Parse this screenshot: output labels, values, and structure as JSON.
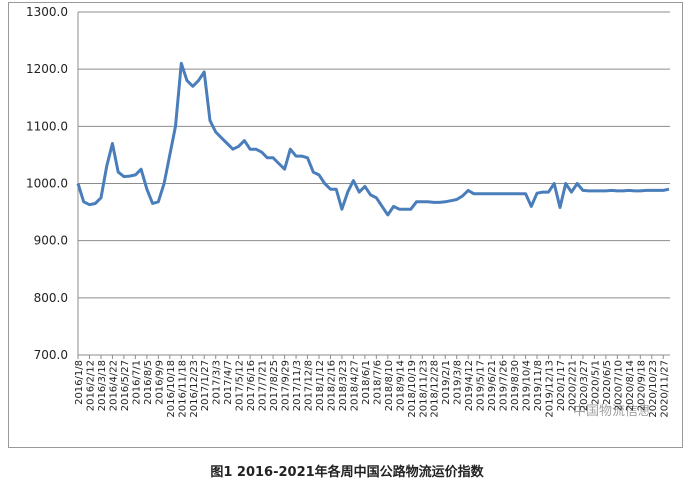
{
  "chart_data": {
    "type": "line",
    "caption": "图1 2016-2021年各周中国公路物流运价指数",
    "watermark": "中国物流信息",
    "categories": [
      "2016/1/8",
      null,
      "2016/2/12",
      null,
      "2016/3/18",
      null,
      "2016/4/22",
      null,
      "2016/5/27",
      null,
      "2016/7/1",
      null,
      "2016/8/5",
      null,
      "2016/9/9",
      null,
      "2016/10/18",
      null,
      "2016/11/18",
      null,
      "2016/12/23",
      null,
      "2017/1/27",
      null,
      "2017/3/3",
      null,
      "2017/4/7",
      null,
      "2017/5/12",
      null,
      "2017/6/16",
      null,
      "2017/7/21",
      null,
      "2017/8/25",
      null,
      "2017/9/29",
      null,
      "2017/11/3",
      null,
      "2017/12/8",
      null,
      "2018/1/12",
      null,
      "2018/2/16",
      null,
      "2018/3/23",
      null,
      "2018/4/27",
      null,
      "2018/6/1",
      null,
      "2018/7/6",
      null,
      "2018/8/10",
      null,
      "2018/9/14",
      null,
      "2018/10/19",
      null,
      "2018/11/23",
      null,
      "2018/12/28",
      null,
      "2019/2/1",
      null,
      "2019/3/8",
      null,
      "2019/4/12",
      null,
      "2019/5/17",
      null,
      "2019/6/21",
      null,
      "2019/7/26",
      null,
      "2019/8/30",
      null,
      "2019/10/4",
      null,
      "2019/11/8",
      null,
      "2019/12/13",
      null,
      "2020/1/17",
      null,
      "2020/2/21",
      null,
      "2020/3/27",
      null,
      "2020/5/1",
      null,
      "2020/6/5",
      null,
      "2020/7/10",
      null,
      "2020/8/14",
      null,
      "2020/9/18",
      null,
      "2020/10/23",
      null,
      "2020/11/27",
      null
    ],
    "values": [
      1000,
      968,
      963,
      965,
      975,
      1030,
      1070,
      1020,
      1012,
      1013,
      1015,
      1025,
      990,
      965,
      968,
      1000,
      1050,
      1100,
      1210,
      1180,
      1170,
      1180,
      1195,
      1110,
      1090,
      1080,
      1070,
      1060,
      1065,
      1075,
      1060,
      1060,
      1055,
      1045,
      1045,
      1035,
      1025,
      1060,
      1048,
      1048,
      1045,
      1020,
      1015,
      1000,
      990,
      990,
      955,
      985,
      1005,
      985,
      995,
      980,
      975,
      960,
      945,
      960,
      955,
      955,
      955,
      968,
      968,
      968,
      967,
      967,
      968,
      970,
      972,
      978,
      988,
      982,
      982,
      982,
      982,
      982,
      982,
      982,
      982,
      982,
      982,
      960,
      983,
      985,
      985,
      1000,
      958,
      1000,
      985,
      1000,
      988,
      987,
      987,
      987,
      987,
      988,
      987,
      987,
      988,
      987,
      987,
      988,
      988,
      988,
      988,
      990
    ],
    "color": "#4a7ebb",
    "ylim": [
      700,
      1300
    ],
    "yticks": [
      {
        "value": 700,
        "label": "700.0"
      },
      {
        "value": 800,
        "label": "800.0"
      },
      {
        "value": 900,
        "label": "900.0"
      },
      {
        "value": 1000,
        "label": "1000.0"
      },
      {
        "value": 1100,
        "label": "1100.0"
      },
      {
        "value": 1200,
        "label": "1200.0"
      },
      {
        "value": 1300,
        "label": "1300.0"
      }
    ],
    "grid": true
  }
}
